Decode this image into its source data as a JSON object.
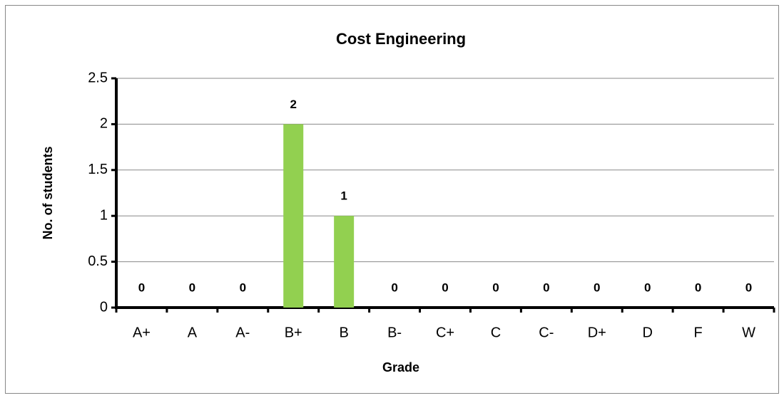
{
  "chart_data": {
    "type": "bar",
    "title": "Cost Engineering",
    "x_label": "Grade",
    "y_label": "No. of students",
    "categories": [
      "A+",
      "A",
      "A-",
      "B+",
      "B",
      "B-",
      "C+",
      "C",
      "C-",
      "D+",
      "D",
      "F",
      "W"
    ],
    "values": [
      0,
      0,
      0,
      2,
      1,
      0,
      0,
      0,
      0,
      0,
      0,
      0,
      0
    ],
    "color": "#92d050",
    "ylim": [
      0,
      2.5
    ],
    "yticks": [
      0,
      0.5,
      1,
      1.5,
      2,
      2.5
    ],
    "grid": true
  }
}
